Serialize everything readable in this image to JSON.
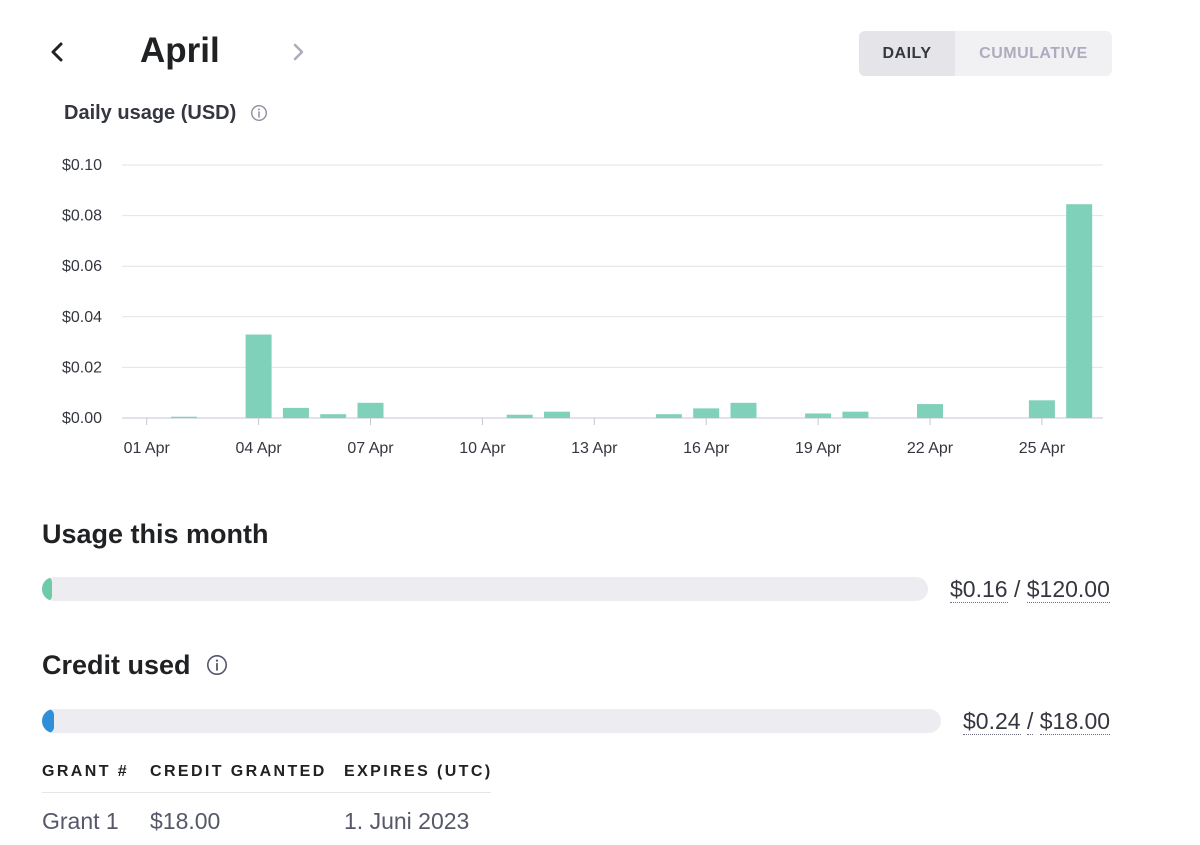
{
  "header": {
    "month": "April",
    "toggle": {
      "daily_label": "DAILY",
      "cumulative_label": "CUMULATIVE",
      "selected": "daily"
    }
  },
  "icons": {
    "prev": "chevron-left-icon",
    "next": "chevron-right-icon",
    "info": "info-icon"
  },
  "colors": {
    "bar": "#7fd1b9",
    "usage_fill": "#6fcaa8",
    "credit_fill": "#2f8fd8",
    "track": "#ececf1"
  },
  "chart_data": {
    "type": "bar",
    "title": "Daily usage (USD)",
    "xlabel": "",
    "ylabel": "",
    "ylim": [
      0,
      0.1
    ],
    "yticks": [
      "$0.00",
      "$0.02",
      "$0.04",
      "$0.06",
      "$0.08",
      "$0.10"
    ],
    "ytick_values": [
      0,
      0.02,
      0.04,
      0.06,
      0.08,
      0.1
    ],
    "xtick_labels": [
      "01 Apr",
      "04 Apr",
      "07 Apr",
      "10 Apr",
      "13 Apr",
      "16 Apr",
      "19 Apr",
      "22 Apr",
      "25 Apr"
    ],
    "xtick_days": [
      1,
      4,
      7,
      10,
      13,
      16,
      19,
      22,
      25
    ],
    "categories": [
      "01 Apr",
      "02 Apr",
      "03 Apr",
      "04 Apr",
      "05 Apr",
      "06 Apr",
      "07 Apr",
      "08 Apr",
      "09 Apr",
      "10 Apr",
      "11 Apr",
      "12 Apr",
      "13 Apr",
      "14 Apr",
      "15 Apr",
      "16 Apr",
      "17 Apr",
      "18 Apr",
      "19 Apr",
      "20 Apr",
      "21 Apr",
      "22 Apr",
      "23 Apr",
      "24 Apr",
      "25 Apr",
      "26 Apr"
    ],
    "values": [
      0,
      0.0005,
      0,
      0.033,
      0.004,
      0.0015,
      0.006,
      0,
      0,
      0,
      0.0013,
      0.0025,
      0,
      0,
      0.0015,
      0.0038,
      0.006,
      0,
      0.0018,
      0.0025,
      0,
      0.0055,
      0,
      0,
      0.007,
      0.0845
    ],
    "grid": true
  },
  "usage": {
    "title": "Usage this month",
    "used": "$0.16",
    "separator": "/",
    "limit": "$120.00",
    "fraction": 0.0013
  },
  "credit": {
    "title": "Credit used",
    "used": "$0.24",
    "separator": "/",
    "total": "$18.00",
    "fraction": 0.013
  },
  "grants": {
    "headers": [
      "GRANT #",
      "CREDIT GRANTED",
      "EXPIRES (UTC)"
    ],
    "rows": [
      [
        "Grant 1",
        "$18.00",
        "1. Juni 2023"
      ]
    ]
  }
}
